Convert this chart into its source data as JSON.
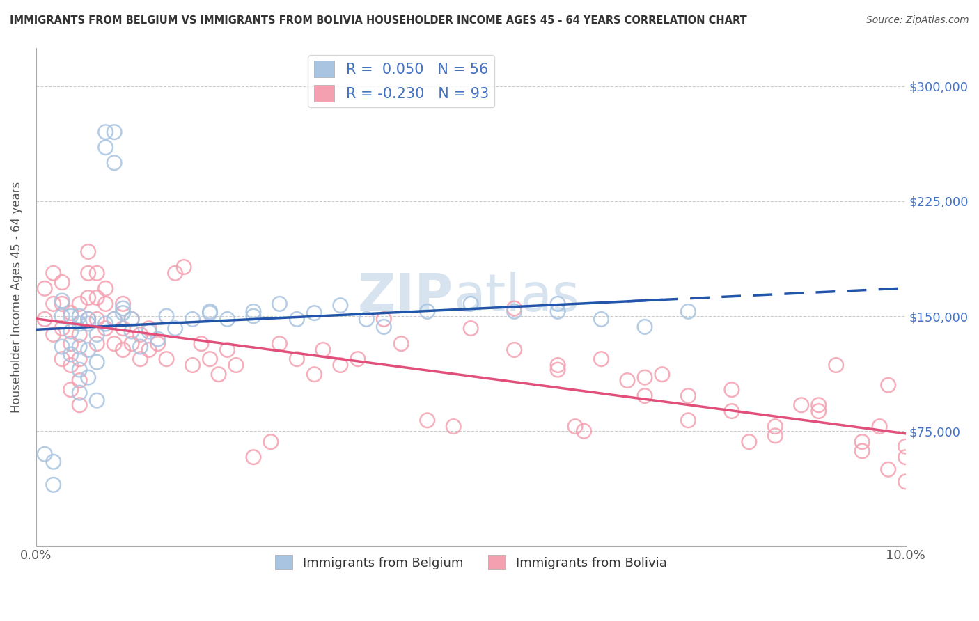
{
  "title": "IMMIGRANTS FROM BELGIUM VS IMMIGRANTS FROM BOLIVIA HOUSEHOLDER INCOME AGES 45 - 64 YEARS CORRELATION CHART",
  "source": "Source: ZipAtlas.com",
  "ylabel": "Householder Income Ages 45 - 64 years",
  "xlim": [
    0.0,
    0.1
  ],
  "ylim": [
    0,
    325000
  ],
  "yticks": [
    0,
    75000,
    150000,
    225000,
    300000
  ],
  "ytick_labels_right": [
    "",
    "$75,000",
    "$150,000",
    "$225,000",
    "$300,000"
  ],
  "xticks": [
    0.0,
    0.02,
    0.04,
    0.06,
    0.08,
    0.1
  ],
  "xtick_labels": [
    "0.0%",
    "",
    "",
    "",
    "",
    "10.0%"
  ],
  "belgium_R": 0.05,
  "belgium_N": 56,
  "bolivia_R": -0.23,
  "bolivia_N": 93,
  "belgium_color": "#a8c4e0",
  "bolivia_color": "#f4a0b0",
  "belgium_line_color": "#2255aa",
  "bolivia_line_color": "#e0507a",
  "watermark_color": "#c8d8ea",
  "legend_label_belgium": "Immigrants from Belgium",
  "legend_label_bolivia": "Immigrants from Bolivia",
  "belgium_scatter_x": [
    0.001,
    0.002,
    0.002,
    0.003,
    0.003,
    0.003,
    0.004,
    0.004,
    0.005,
    0.005,
    0.005,
    0.005,
    0.006,
    0.006,
    0.006,
    0.007,
    0.007,
    0.007,
    0.008,
    0.008,
    0.009,
    0.009,
    0.01,
    0.011,
    0.012,
    0.013,
    0.014,
    0.015,
    0.016,
    0.018,
    0.02,
    0.022,
    0.025,
    0.028,
    0.03,
    0.032,
    0.035,
    0.038,
    0.04,
    0.045,
    0.05,
    0.055,
    0.06,
    0.065,
    0.07,
    0.075,
    0.008,
    0.009,
    0.01,
    0.011,
    0.004,
    0.005,
    0.006,
    0.02,
    0.025,
    0.06
  ],
  "belgium_scatter_y": [
    60000,
    55000,
    40000,
    130000,
    150000,
    160000,
    125000,
    140000,
    100000,
    115000,
    130000,
    150000,
    110000,
    128000,
    145000,
    95000,
    120000,
    138000,
    260000,
    270000,
    250000,
    270000,
    155000,
    140000,
    130000,
    140000,
    135000,
    150000,
    142000,
    148000,
    152000,
    148000,
    153000,
    158000,
    148000,
    152000,
    157000,
    148000,
    143000,
    153000,
    158000,
    153000,
    158000,
    148000,
    143000,
    153000,
    145000,
    148000,
    152000,
    148000,
    150000,
    145000,
    148000,
    153000,
    150000,
    153000
  ],
  "bolivia_scatter_x": [
    0.001,
    0.001,
    0.002,
    0.002,
    0.002,
    0.003,
    0.003,
    0.003,
    0.003,
    0.004,
    0.004,
    0.004,
    0.004,
    0.005,
    0.005,
    0.005,
    0.005,
    0.005,
    0.006,
    0.006,
    0.006,
    0.006,
    0.007,
    0.007,
    0.007,
    0.007,
    0.008,
    0.008,
    0.008,
    0.009,
    0.009,
    0.01,
    0.01,
    0.01,
    0.011,
    0.011,
    0.012,
    0.012,
    0.013,
    0.013,
    0.014,
    0.015,
    0.016,
    0.017,
    0.018,
    0.019,
    0.02,
    0.021,
    0.022,
    0.023,
    0.025,
    0.027,
    0.028,
    0.03,
    0.032,
    0.033,
    0.035,
    0.037,
    0.04,
    0.042,
    0.045,
    0.048,
    0.05,
    0.055,
    0.06,
    0.062,
    0.065,
    0.068,
    0.07,
    0.072,
    0.075,
    0.08,
    0.082,
    0.085,
    0.088,
    0.09,
    0.092,
    0.095,
    0.097,
    0.098,
    0.1,
    0.055,
    0.06,
    0.063,
    0.07,
    0.075,
    0.08,
    0.085,
    0.09,
    0.095,
    0.098,
    0.1,
    0.1
  ],
  "bolivia_scatter_y": [
    148000,
    168000,
    138000,
    158000,
    178000,
    122000,
    142000,
    158000,
    172000,
    102000,
    118000,
    132000,
    152000,
    92000,
    108000,
    122000,
    138000,
    158000,
    178000,
    192000,
    162000,
    148000,
    132000,
    148000,
    162000,
    178000,
    142000,
    158000,
    168000,
    132000,
    148000,
    128000,
    142000,
    158000,
    132000,
    148000,
    122000,
    138000,
    128000,
    142000,
    132000,
    122000,
    178000,
    182000,
    118000,
    132000,
    122000,
    112000,
    128000,
    118000,
    58000,
    68000,
    132000,
    122000,
    112000,
    128000,
    118000,
    122000,
    148000,
    132000,
    82000,
    78000,
    142000,
    128000,
    118000,
    78000,
    122000,
    108000,
    98000,
    112000,
    82000,
    102000,
    68000,
    78000,
    92000,
    88000,
    118000,
    68000,
    78000,
    105000,
    58000,
    155000,
    115000,
    75000,
    110000,
    98000,
    88000,
    72000,
    92000,
    62000,
    50000,
    65000,
    42000
  ]
}
